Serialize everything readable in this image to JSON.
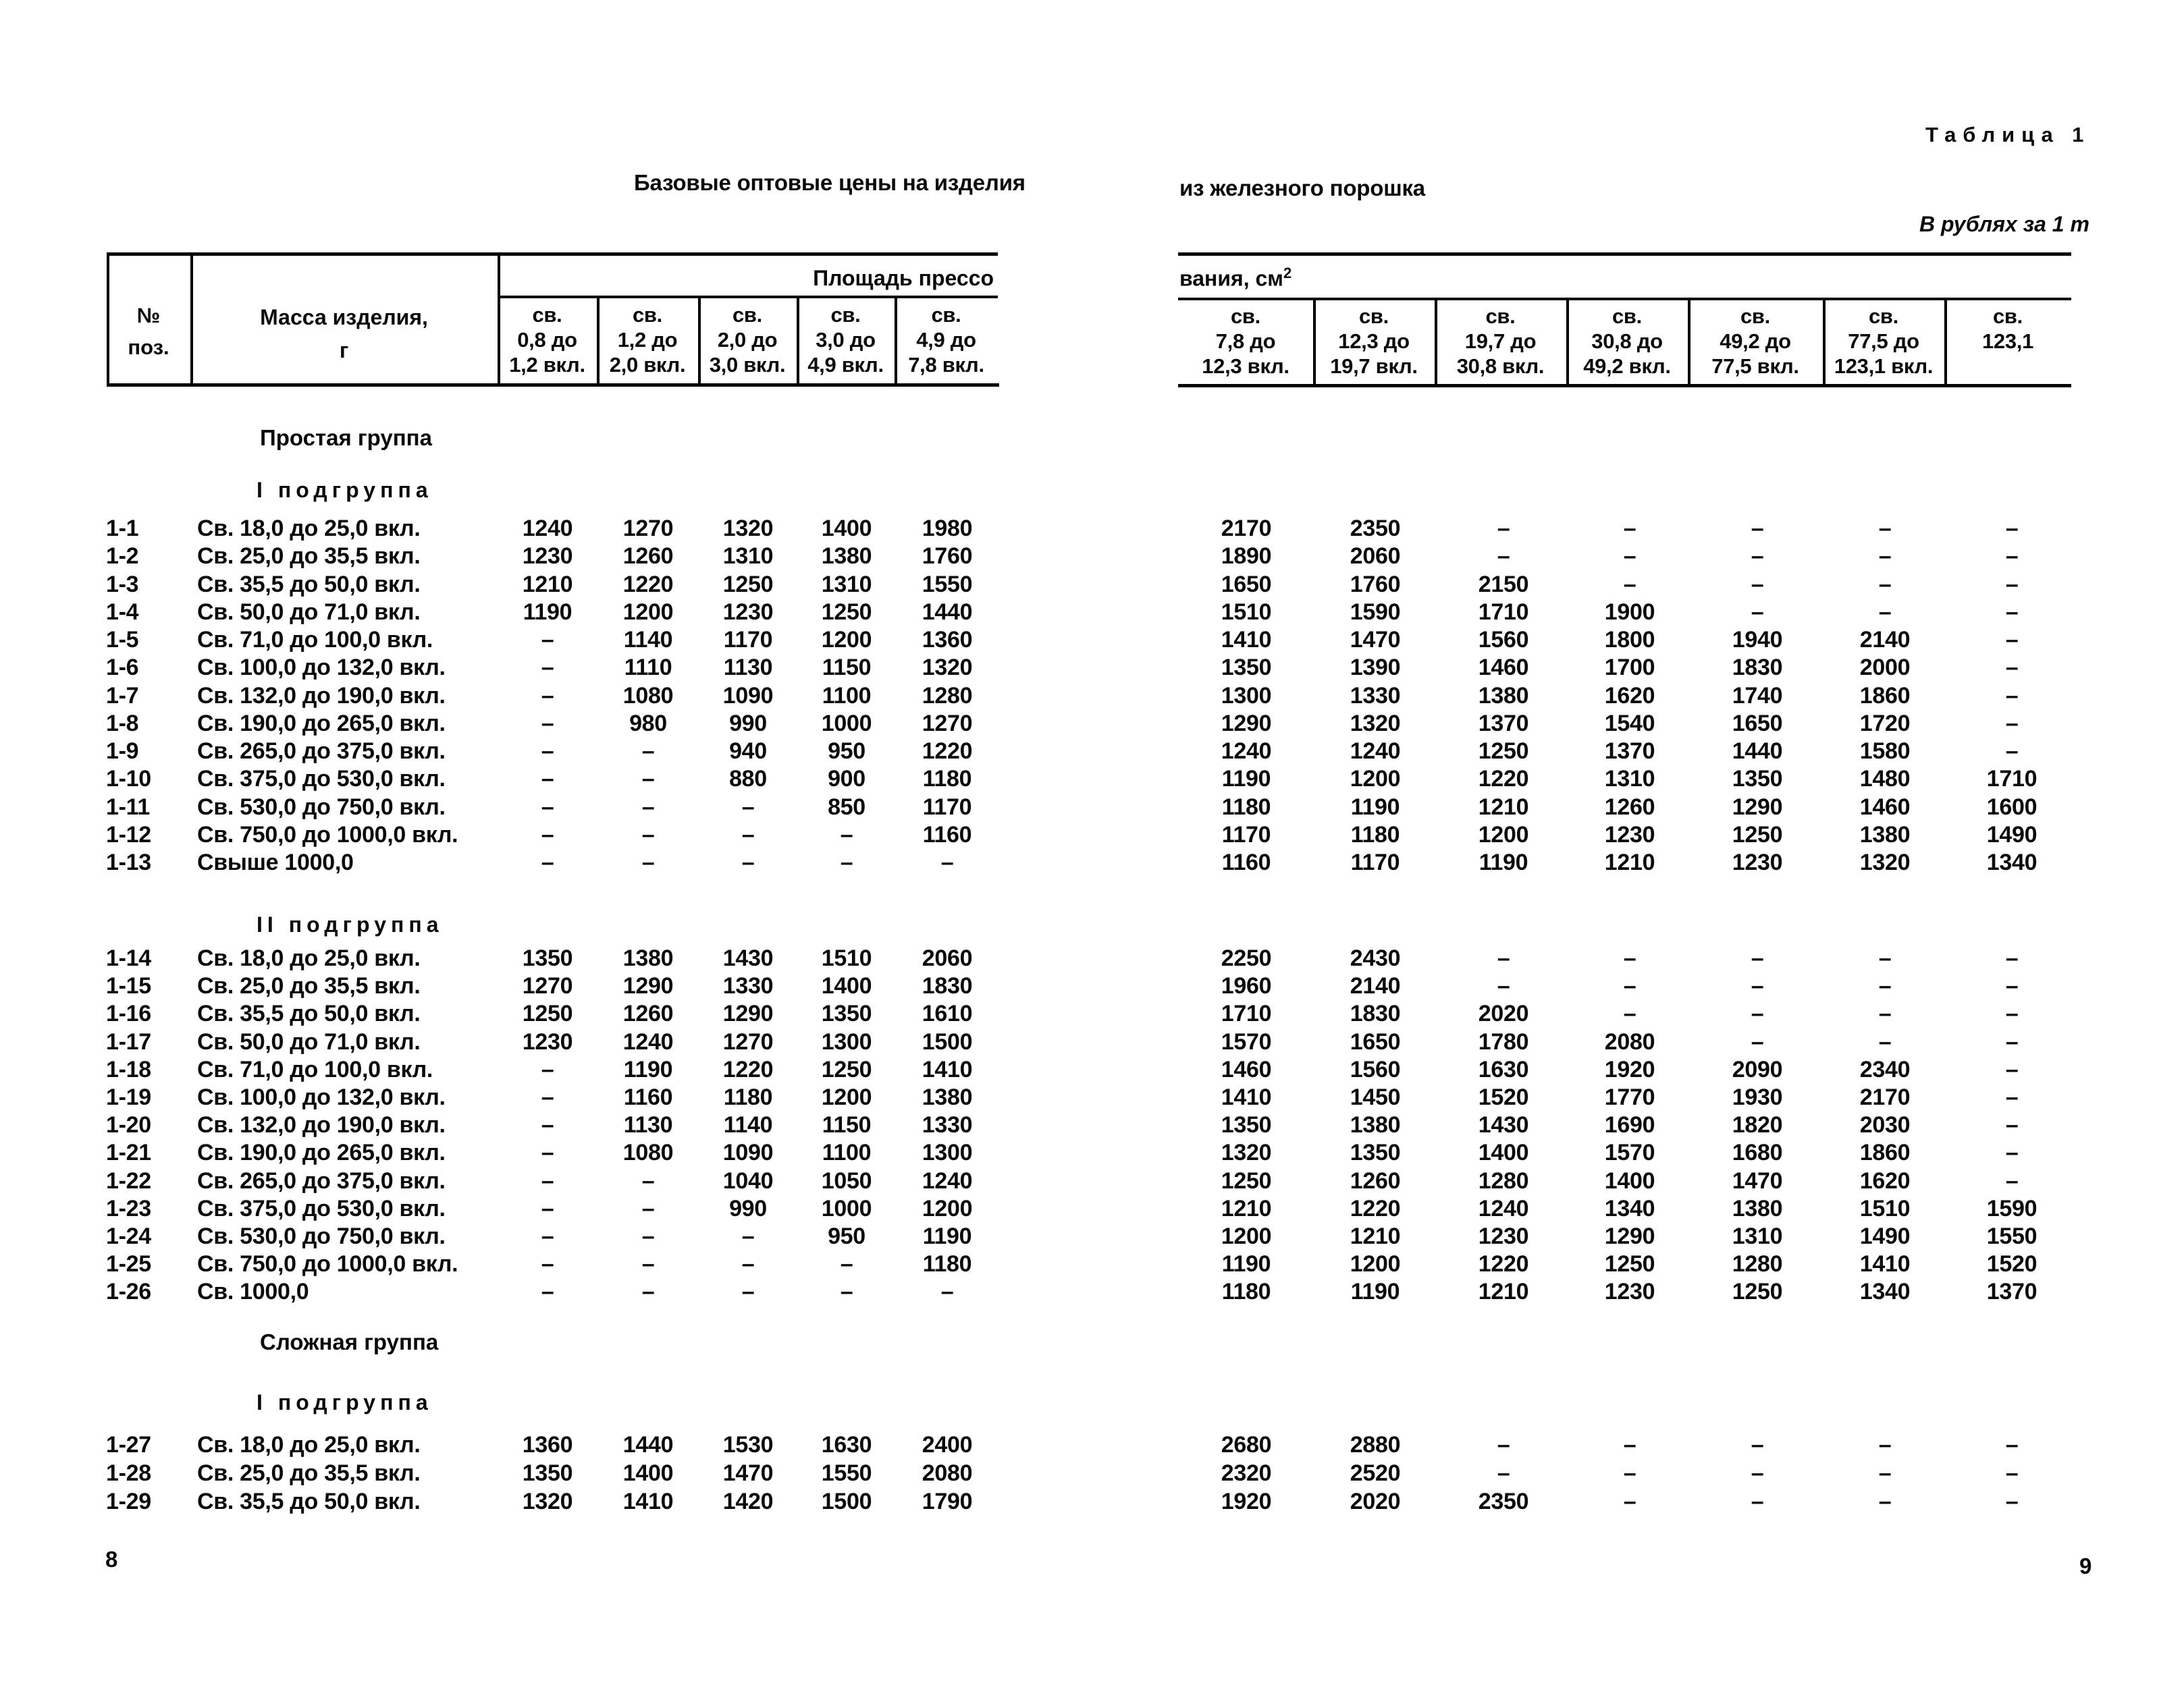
{
  "page": {
    "table_label": "Таблица 1",
    "title_left": "Базовые оптовые цены на изделия",
    "title_right": "из железного порошка",
    "units_note": "В рублях за 1 т",
    "page_number_left": "8",
    "page_number_right": "9"
  },
  "header": {
    "pos": "№\nпоз.",
    "mass": "Масса изделия,\nг",
    "span_left": "Площадь прессо",
    "span_right_text": "вания, см",
    "span_right_sup": "2",
    "left_columns": [
      "св.\n0,8 до\n1,2 вкл.",
      "св.\n1,2 до\n2,0 вкл.",
      "св.\n2,0 до\n3,0 вкл.",
      "св.\n3,0 до\n4,9 вкл.",
      "св.\n4,9 до\n7,8 вкл."
    ],
    "right_columns": [
      "св.\n7,8 до\n12,3 вкл.",
      "св.\n12,3 до\n19,7 вкл.",
      "св.\n19,7 до\n30,8 вкл.",
      "св.\n30,8 до\n49,2 вкл.",
      "св.\n49,2 до\n77,5 вкл.",
      "св.\n77,5 до\n123,1 вкл.",
      "св.\n123,1"
    ]
  },
  "sections": [
    {
      "group": "Простая группа",
      "subgroup": "I подгруппа",
      "rows": [
        {
          "pos": "1-1",
          "mass": "Св. 18,0 до 25,0 вкл.",
          "left": [
            "1240",
            "1270",
            "1320",
            "1400",
            "1980"
          ],
          "right": [
            "2170",
            "2350",
            "–",
            "–",
            "–",
            "–",
            "–"
          ]
        },
        {
          "pos": "1-2",
          "mass": "Св. 25,0 до 35,5 вкл.",
          "left": [
            "1230",
            "1260",
            "1310",
            "1380",
            "1760"
          ],
          "right": [
            "1890",
            "2060",
            "–",
            "–",
            "–",
            "–",
            "–"
          ]
        },
        {
          "pos": "1-3",
          "mass": "Св. 35,5 до 50,0 вкл.",
          "left": [
            "1210",
            "1220",
            "1250",
            "1310",
            "1550"
          ],
          "right": [
            "1650",
            "1760",
            "2150",
            "–",
            "–",
            "–",
            "–"
          ]
        },
        {
          "pos": "1-4",
          "mass": "Св. 50,0 до 71,0 вкл.",
          "left": [
            "1190",
            "1200",
            "1230",
            "1250",
            "1440"
          ],
          "right": [
            "1510",
            "1590",
            "1710",
            "1900",
            "–",
            "–",
            "–"
          ]
        },
        {
          "pos": "1-5",
          "mass": "Св. 71,0 до 100,0 вкл.",
          "left": [
            "–",
            "1140",
            "1170",
            "1200",
            "1360"
          ],
          "right": [
            "1410",
            "1470",
            "1560",
            "1800",
            "1940",
            "2140",
            "–"
          ]
        },
        {
          "pos": "1-6",
          "mass": "Св. 100,0 до 132,0 вкл.",
          "left": [
            "–",
            "1110",
            "1130",
            "1150",
            "1320"
          ],
          "right": [
            "1350",
            "1390",
            "1460",
            "1700",
            "1830",
            "2000",
            "–"
          ]
        },
        {
          "pos": "1-7",
          "mass": "Св. 132,0 до 190,0 вкл.",
          "left": [
            "–",
            "1080",
            "1090",
            "1100",
            "1280"
          ],
          "right": [
            "1300",
            "1330",
            "1380",
            "1620",
            "1740",
            "1860",
            "–"
          ]
        },
        {
          "pos": "1-8",
          "mass": "Св. 190,0 до 265,0 вкл.",
          "left": [
            "–",
            "980",
            "990",
            "1000",
            "1270"
          ],
          "right": [
            "1290",
            "1320",
            "1370",
            "1540",
            "1650",
            "1720",
            "–"
          ]
        },
        {
          "pos": "1-9",
          "mass": "Св. 265,0 до 375,0 вкл.",
          "left": [
            "–",
            "–",
            "940",
            "950",
            "1220"
          ],
          "right": [
            "1240",
            "1240",
            "1250",
            "1370",
            "1440",
            "1580",
            "–"
          ]
        },
        {
          "pos": "1-10",
          "mass": "Св. 375,0 до 530,0 вкл.",
          "left": [
            "–",
            "–",
            "880",
            "900",
            "1180"
          ],
          "right": [
            "1190",
            "1200",
            "1220",
            "1310",
            "1350",
            "1480",
            "1710"
          ]
        },
        {
          "pos": "1-11",
          "mass": "Св. 530,0 до 750,0 вкл.",
          "left": [
            "–",
            "–",
            "–",
            "850",
            "1170"
          ],
          "right": [
            "1180",
            "1190",
            "1210",
            "1260",
            "1290",
            "1460",
            "1600"
          ]
        },
        {
          "pos": "1-12",
          "mass": "Св. 750,0 до 1000,0 вкл.",
          "left": [
            "–",
            "–",
            "–",
            "–",
            "1160"
          ],
          "right": [
            "1170",
            "1180",
            "1200",
            "1230",
            "1250",
            "1380",
            "1490"
          ]
        },
        {
          "pos": "1-13",
          "mass": "Свыше 1000,0",
          "left": [
            "–",
            "–",
            "–",
            "–",
            "–"
          ],
          "right": [
            "1160",
            "1170",
            "1190",
            "1210",
            "1230",
            "1320",
            "1340"
          ]
        }
      ]
    },
    {
      "group": null,
      "subgroup": "II подгруппа",
      "rows": [
        {
          "pos": "1-14",
          "mass": "Св. 18,0 до 25,0 вкл.",
          "left": [
            "1350",
            "1380",
            "1430",
            "1510",
            "2060"
          ],
          "right": [
            "2250",
            "2430",
            "–",
            "–",
            "–",
            "–",
            "–"
          ]
        },
        {
          "pos": "1-15",
          "mass": "Св. 25,0 до 35,5 вкл.",
          "left": [
            "1270",
            "1290",
            "1330",
            "1400",
            "1830"
          ],
          "right": [
            "1960",
            "2140",
            "–",
            "–",
            "–",
            "–",
            "–"
          ]
        },
        {
          "pos": "1-16",
          "mass": "Св. 35,5 до 50,0 вкл.",
          "left": [
            "1250",
            "1260",
            "1290",
            "1350",
            "1610"
          ],
          "right": [
            "1710",
            "1830",
            "2020",
            "–",
            "–",
            "–",
            "–"
          ]
        },
        {
          "pos": "1-17",
          "mass": "Св. 50,0 до 71,0 вкл.",
          "left": [
            "1230",
            "1240",
            "1270",
            "1300",
            "1500"
          ],
          "right": [
            "1570",
            "1650",
            "1780",
            "2080",
            "–",
            "–",
            "–"
          ]
        },
        {
          "pos": "1-18",
          "mass": "Св. 71,0 до 100,0 вкл.",
          "left": [
            "–",
            "1190",
            "1220",
            "1250",
            "1410"
          ],
          "right": [
            "1460",
            "1560",
            "1630",
            "1920",
            "2090",
            "2340",
            "–"
          ]
        },
        {
          "pos": "1-19",
          "mass": "Св. 100,0 до 132,0 вкл.",
          "left": [
            "–",
            "1160",
            "1180",
            "1200",
            "1380"
          ],
          "right": [
            "1410",
            "1450",
            "1520",
            "1770",
            "1930",
            "2170",
            "–"
          ]
        },
        {
          "pos": "1-20",
          "mass": "Св. 132,0 до 190,0 вкл.",
          "left": [
            "–",
            "1130",
            "1140",
            "1150",
            "1330"
          ],
          "right": [
            "1350",
            "1380",
            "1430",
            "1690",
            "1820",
            "2030",
            "–"
          ]
        },
        {
          "pos": "1-21",
          "mass": "Св. 190,0 до 265,0 вкл.",
          "left": [
            "–",
            "1080",
            "1090",
            "1100",
            "1300"
          ],
          "right": [
            "1320",
            "1350",
            "1400",
            "1570",
            "1680",
            "1860",
            "–"
          ]
        },
        {
          "pos": "1-22",
          "mass": "Св. 265,0 до 375,0 вкл.",
          "left": [
            "–",
            "–",
            "1040",
            "1050",
            "1240"
          ],
          "right": [
            "1250",
            "1260",
            "1280",
            "1400",
            "1470",
            "1620",
            "–"
          ]
        },
        {
          "pos": "1-23",
          "mass": "Св. 375,0 до 530,0 вкл.",
          "left": [
            "–",
            "–",
            "990",
            "1000",
            "1200"
          ],
          "right": [
            "1210",
            "1220",
            "1240",
            "1340",
            "1380",
            "1510",
            "1590"
          ]
        },
        {
          "pos": "1-24",
          "mass": "Св. 530,0 до 750,0 вкл.",
          "left": [
            "–",
            "–",
            "–",
            "950",
            "1190"
          ],
          "right": [
            "1200",
            "1210",
            "1230",
            "1290",
            "1310",
            "1490",
            "1550"
          ]
        },
        {
          "pos": "1-25",
          "mass": "Св. 750,0 до 1000,0 вкл.",
          "left": [
            "–",
            "–",
            "–",
            "–",
            "1180"
          ],
          "right": [
            "1190",
            "1200",
            "1220",
            "1250",
            "1280",
            "1410",
            "1520"
          ]
        },
        {
          "pos": "1-26",
          "mass": "Св. 1000,0",
          "left": [
            "–",
            "–",
            "–",
            "–",
            "–"
          ],
          "right": [
            "1180",
            "1190",
            "1210",
            "1230",
            "1250",
            "1340",
            "1370"
          ]
        }
      ]
    },
    {
      "group": "Сложная группа",
      "subgroup": "I подгруппа",
      "rows": [
        {
          "pos": "1-27",
          "mass": "Св. 18,0 до 25,0 вкл.",
          "left": [
            "1360",
            "1440",
            "1530",
            "1630",
            "2400"
          ],
          "right": [
            "2680",
            "2880",
            "–",
            "–",
            "–",
            "–",
            "–"
          ]
        },
        {
          "pos": "1-28",
          "mass": "Св. 25,0 до 35,5 вкл.",
          "left": [
            "1350",
            "1400",
            "1470",
            "1550",
            "2080"
          ],
          "right": [
            "2320",
            "2520",
            "–",
            "–",
            "–",
            "–",
            "–"
          ]
        },
        {
          "pos": "1-29",
          "mass": "Св. 35,5 до 50,0 вкл.",
          "left": [
            "1320",
            "1410",
            "1420",
            "1500",
            "1790"
          ],
          "right": [
            "1920",
            "2020",
            "2350",
            "–",
            "–",
            "–",
            "–"
          ]
        }
      ]
    }
  ]
}
